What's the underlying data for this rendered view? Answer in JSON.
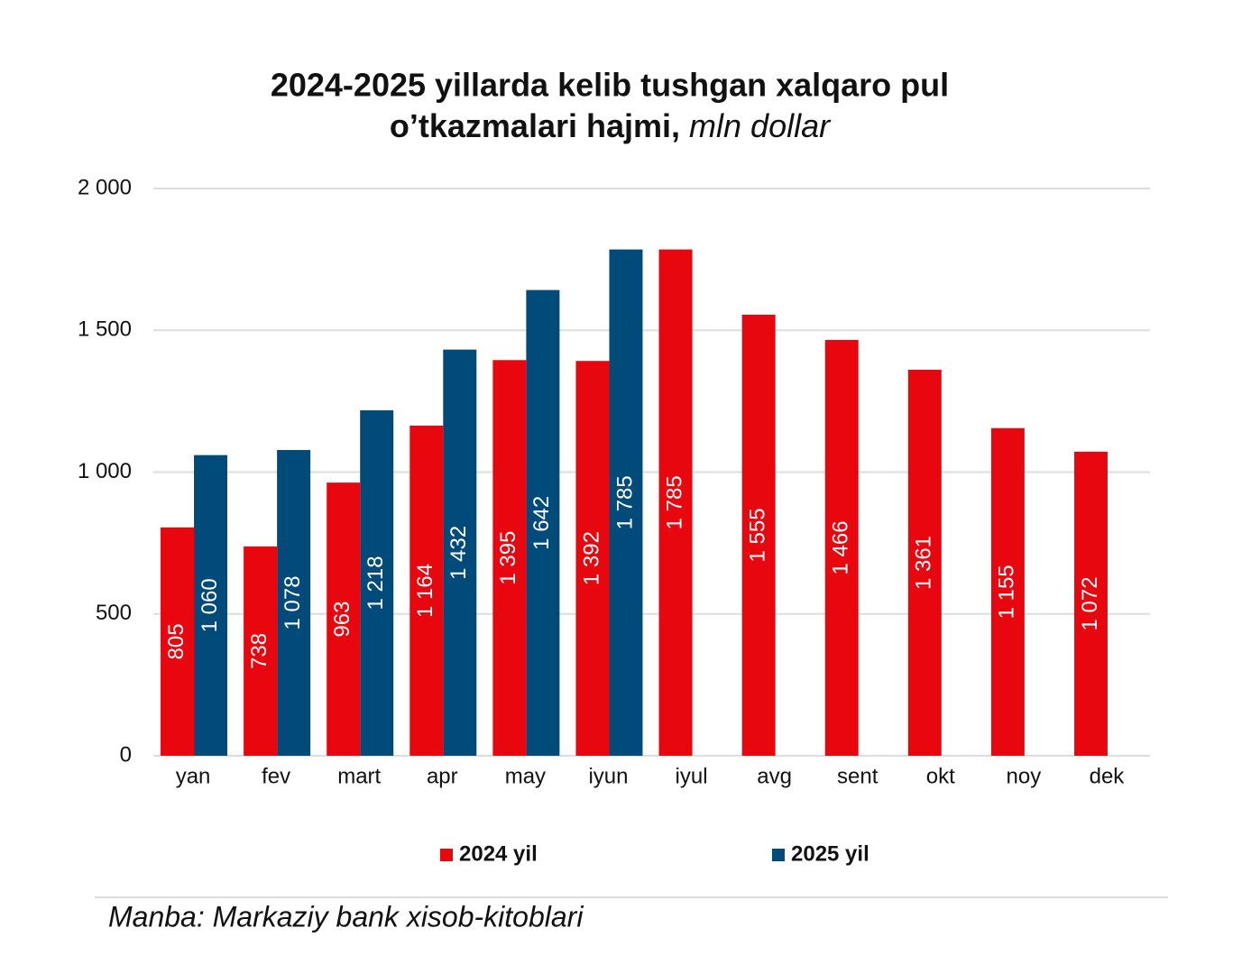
{
  "chart_data": {
    "type": "bar",
    "title": [
      "2024-2025 yillarda kelib tushgan xalqaro pul",
      "o’tkazmalari hajmi,"
    ],
    "unit": "mln dollar",
    "categories": [
      "yan",
      "fev",
      "mart",
      "apr",
      "may",
      "iyun",
      "iyul",
      "avg",
      "sent",
      "okt",
      "noy",
      "dek"
    ],
    "series": [
      {
        "name": "2024 yil",
        "color": "#e8060f",
        "values": [
          805,
          738,
          963,
          1164,
          1395,
          1392,
          1785,
          1555,
          1466,
          1361,
          1155,
          1072
        ],
        "value_labels": [
          "805",
          "738",
          "963",
          "1 164",
          "1 395",
          "1 392",
          "1 785",
          "1 555",
          "1 466",
          "1 361",
          "1 155",
          "1 072"
        ]
      },
      {
        "name": "2025 yil",
        "color": "#004b7a",
        "values": [
          1060,
          1078,
          1218,
          1432,
          1642,
          1785,
          null,
          null,
          null,
          null,
          null,
          null
        ],
        "value_labels": [
          "1 060",
          "1 078",
          "1 218",
          "1 432",
          "1 642",
          "1 785",
          null,
          null,
          null,
          null,
          null,
          null
        ]
      }
    ],
    "ylim": [
      0,
      2000
    ],
    "yticks": [
      0,
      500,
      {
        "value": 1000,
        "label": "1 000"
      },
      {
        "value": 1500,
        "label": "1 500"
      },
      {
        "value": 2000,
        "label": "2 000"
      }
    ],
    "grid": true,
    "legend": "bottom",
    "source": "Manba: Markaziy bank xisob-kitoblari"
  }
}
